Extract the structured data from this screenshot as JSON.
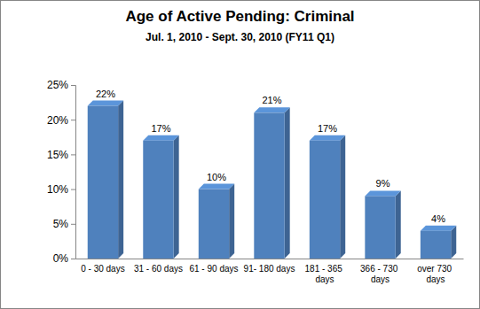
{
  "chart_data": {
    "type": "bar",
    "title": "Age of Active Pending: Criminal",
    "subtitle": "Jul. 1, 2010 - Sept. 30, 2010 (FY11 Q1)",
    "categories": [
      "0 - 30 days",
      "31 - 60 days",
      "61 - 90 days",
      "91- 180 days",
      "181 - 365 days",
      "366 - 730 days",
      "over 730 days"
    ],
    "values": [
      22,
      17,
      10,
      21,
      17,
      9,
      4
    ],
    "value_labels": [
      "22%",
      "17%",
      "10%",
      "21%",
      "17%",
      "9%",
      "4%"
    ],
    "color": "#4f81bd",
    "ylim": [
      0,
      25
    ],
    "yticks": [
      {
        "value": 0,
        "label": "0%"
      },
      {
        "value": 5,
        "label": "5%"
      },
      {
        "value": 10,
        "label": "10%"
      },
      {
        "value": 15,
        "label": "15%"
      },
      {
        "value": 20,
        "label": "20%"
      },
      {
        "value": 25,
        "label": "25%"
      }
    ],
    "grid": false,
    "data_labels": true
  }
}
